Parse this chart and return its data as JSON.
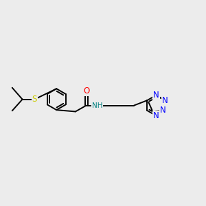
{
  "bg_color": "#ececec",
  "bond_color": "#000000",
  "bond_width": 1.4,
  "atom_colors": {
    "S": "#cccc00",
    "O": "#ff0000",
    "N": "#0000ff",
    "NH": "#008080",
    "C": "#000000"
  },
  "xlim": [
    0,
    10
  ],
  "ylim": [
    2,
    8
  ],
  "figsize": [
    3.0,
    3.0
  ],
  "dpi": 100
}
